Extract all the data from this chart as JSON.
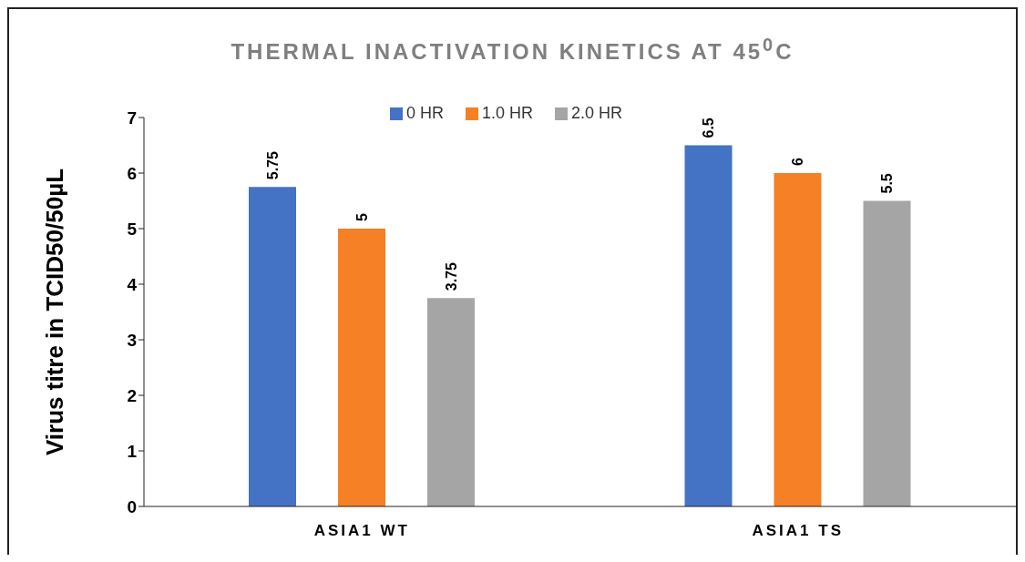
{
  "chart_data": {
    "type": "bar",
    "title": "THERMAL INACTIVATION KINETICS AT 45$^{0}$C",
    "ylabel": "Virus titre in TCID50/50µL",
    "categories": [
      "ASIA1 WT",
      "ASIA1 TS"
    ],
    "series": [
      {
        "name": "0 HR",
        "color": "#4472c4",
        "values": [
          5.75,
          6.5
        ]
      },
      {
        "name": "1.0 HR",
        "color": "#f58025",
        "values": [
          5,
          6
        ]
      },
      {
        "name": "2.0 HR",
        "color": "#a5a5a5",
        "values": [
          3.75,
          5.5
        ]
      }
    ],
    "ylim": [
      0,
      7
    ],
    "yticks": [
      0,
      1,
      2,
      3,
      4,
      5,
      6,
      7
    ],
    "grid": false,
    "legend": "top",
    "data_labels": true
  }
}
